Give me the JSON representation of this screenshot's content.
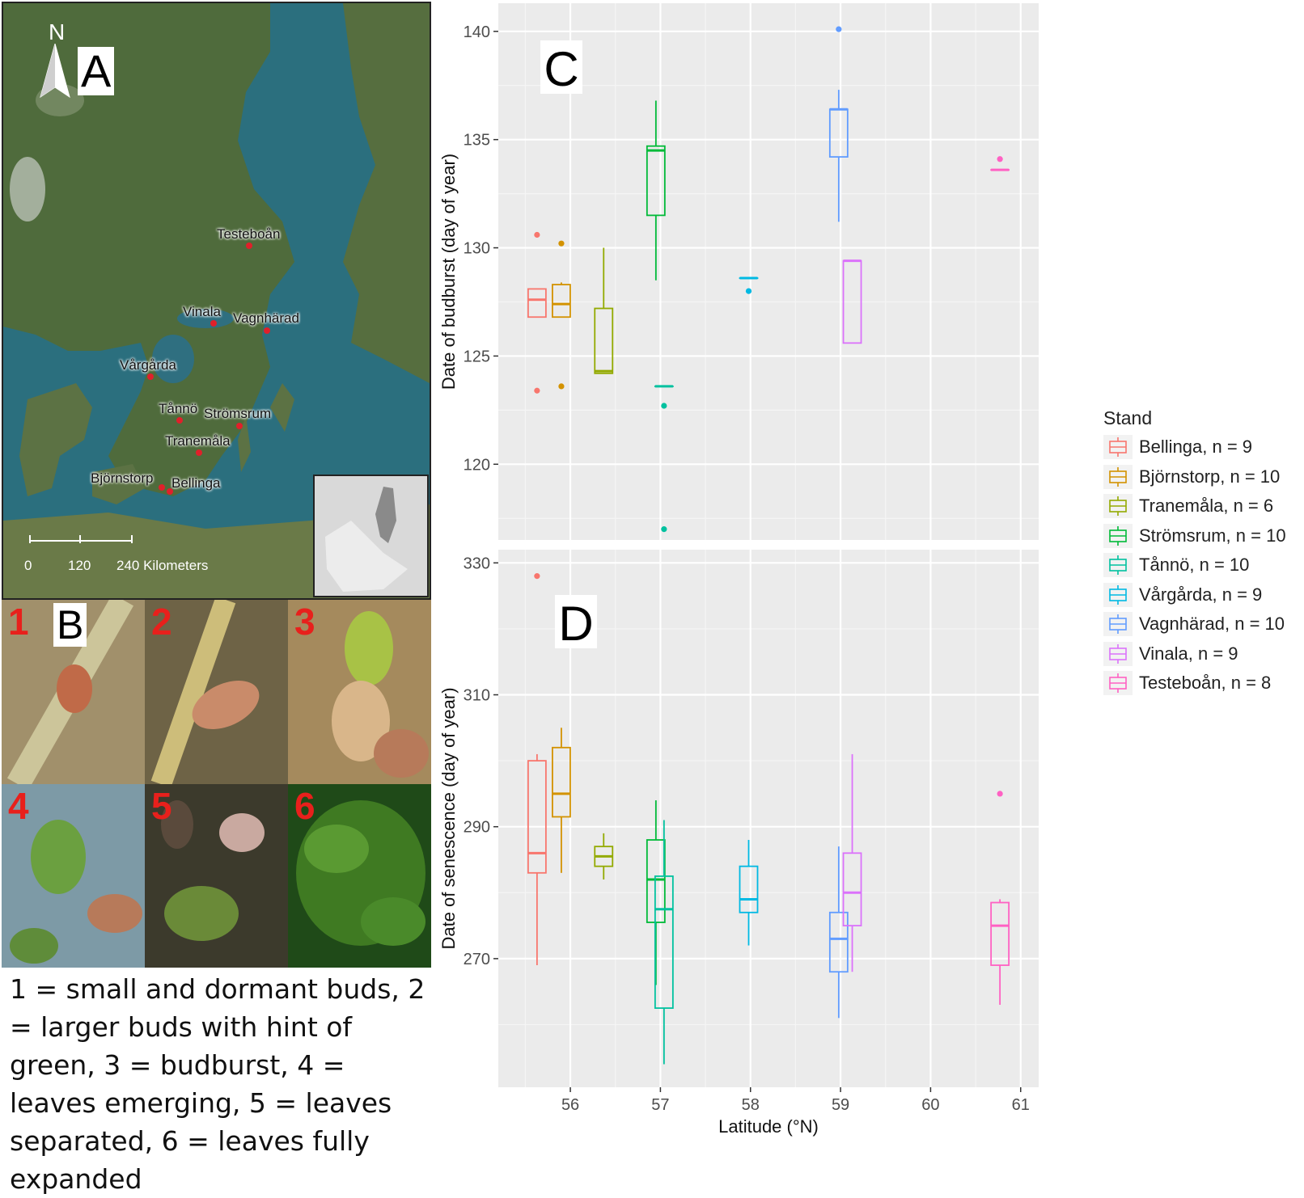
{
  "panel_a": {
    "letter": "A",
    "north_label": "N",
    "sites": [
      {
        "name": "Testeboån"
      },
      {
        "name": "Vinala"
      },
      {
        "name": "Vagnhärad"
      },
      {
        "name": "Vårgårda"
      },
      {
        "name": "Tånnö"
      },
      {
        "name": "Strömsrum"
      },
      {
        "name": "Tranemåla"
      },
      {
        "name": "Björnstorp"
      },
      {
        "name": "Bellinga"
      }
    ],
    "scale_labels": [
      "0",
      "120",
      "240 Kilometers"
    ],
    "colors": {
      "sea": "#2b6f7e",
      "land": "#4f6b3c",
      "site_dot": "#e0202a"
    }
  },
  "panel_b": {
    "letter": "B",
    "stage_numbers": [
      "1",
      "2",
      "3",
      "4",
      "5",
      "6"
    ],
    "caption": "1 = small and dormant buds, 2 = larger buds with hint of green, 3 = budburst, 4 = leaves emerging, 5 = leaves separated, 6 = leaves fully expanded"
  },
  "chart_data": [
    {
      "type": "box",
      "panel_label": "C",
      "ylabel": "Date of budburst (day of year)",
      "ylim": [
        116.5,
        141.3
      ],
      "yticks": [
        120,
        125,
        130,
        135,
        140
      ],
      "xlim": [
        55.2,
        61.2
      ],
      "grid": true,
      "series": [
        {
          "name": "Bellinga",
          "x": 55.63,
          "min": 126.8,
          "q1": 126.8,
          "median": 127.6,
          "q3": 128.1,
          "max": 128.1,
          "outliers": [
            130.6,
            123.4
          ]
        },
        {
          "name": "Björnstorp",
          "x": 55.9,
          "min": 126.8,
          "q1": 126.8,
          "median": 127.4,
          "q3": 128.3,
          "max": 128.4,
          "outliers": [
            130.2,
            123.6
          ]
        },
        {
          "name": "Tranemåla",
          "x": 56.37,
          "min": 124.2,
          "q1": 124.2,
          "median": 124.3,
          "q3": 127.2,
          "max": 130.0,
          "outliers": []
        },
        {
          "name": "Strömsrum",
          "x": 56.95,
          "min": 128.5,
          "q1": 131.5,
          "median": 134.5,
          "q3": 134.7,
          "max": 136.8,
          "outliers": []
        },
        {
          "name": "Tånnö",
          "x": 57.04,
          "min": 123.6,
          "q1": 123.6,
          "median": 123.6,
          "q3": 123.6,
          "max": 123.6,
          "outliers": [
            122.7,
            117.0
          ]
        },
        {
          "name": "Vårgårda",
          "x": 57.98,
          "min": 128.6,
          "q1": 128.6,
          "median": 128.6,
          "q3": 128.6,
          "max": 128.6,
          "outliers": [
            128.0
          ]
        },
        {
          "name": "Vagnhärad",
          "x": 58.98,
          "min": 131.2,
          "q1": 134.2,
          "median": 136.4,
          "q3": 136.4,
          "max": 137.3,
          "outliers": [
            140.1
          ]
        },
        {
          "name": "Vinala",
          "x": 59.13,
          "min": 125.6,
          "q1": 125.6,
          "median": 129.4,
          "q3": 129.4,
          "max": 129.4,
          "outliers": []
        },
        {
          "name": "Testeboån",
          "x": 60.77,
          "min": 133.6,
          "q1": 133.6,
          "median": 133.6,
          "q3": 133.6,
          "max": 133.6,
          "outliers": [
            134.1
          ]
        }
      ]
    },
    {
      "type": "box",
      "panel_label": "D",
      "ylabel": "Date of senescence (day of year)",
      "xlabel": "Latitude (°N)",
      "ylim": [
        250.5,
        332
      ],
      "yticks": [
        270,
        290,
        310,
        330
      ],
      "xticks": [
        56,
        57,
        58,
        59,
        60,
        61
      ],
      "xlim": [
        55.2,
        61.2
      ],
      "grid": true,
      "series": [
        {
          "name": "Bellinga",
          "x": 55.63,
          "min": 269,
          "q1": 283,
          "median": 286,
          "q3": 300,
          "max": 301,
          "outliers": [
            328
          ]
        },
        {
          "name": "Björnstorp",
          "x": 55.9,
          "min": 283,
          "q1": 291.5,
          "median": 295,
          "q3": 302,
          "max": 305,
          "outliers": []
        },
        {
          "name": "Tranemåla",
          "x": 56.37,
          "min": 282,
          "q1": 284,
          "median": 285.5,
          "q3": 287,
          "max": 289,
          "outliers": []
        },
        {
          "name": "Strömsrum",
          "x": 56.95,
          "min": 266,
          "q1": 275.5,
          "median": 282,
          "q3": 288,
          "max": 294,
          "outliers": []
        },
        {
          "name": "Tånnö",
          "x": 57.04,
          "min": 254,
          "q1": 262.5,
          "median": 277.5,
          "q3": 282.5,
          "max": 291,
          "outliers": []
        },
        {
          "name": "Vårgårda",
          "x": 57.98,
          "min": 272,
          "q1": 277,
          "median": 279,
          "q3": 284,
          "max": 288,
          "outliers": []
        },
        {
          "name": "Vagnhärad",
          "x": 58.98,
          "min": 261,
          "q1": 268,
          "median": 273,
          "q3": 277,
          "max": 287,
          "outliers": []
        },
        {
          "name": "Vinala",
          "x": 59.13,
          "min": 268,
          "q1": 275,
          "median": 280,
          "q3": 286,
          "max": 301,
          "outliers": []
        },
        {
          "name": "Testeboån",
          "x": 60.77,
          "min": 263,
          "q1": 269,
          "median": 275,
          "q3": 278.5,
          "max": 279,
          "outliers": [
            295
          ]
        }
      ]
    }
  ],
  "legend": {
    "title": "Stand",
    "entries": [
      {
        "label": "Bellinga, n = 9",
        "color": "#F8766D"
      },
      {
        "label": "Björnstorp, n = 10",
        "color": "#D39200"
      },
      {
        "label": "Tranemåla, n = 6",
        "color": "#93AA00"
      },
      {
        "label": "Strömsrum, n = 10",
        "color": "#00BA38"
      },
      {
        "label": "Tånnö, n = 10",
        "color": "#00C19F"
      },
      {
        "label": "Vårgårda, n = 9",
        "color": "#00B9E3"
      },
      {
        "label": "Vagnhärad, n = 10",
        "color": "#619CFF"
      },
      {
        "label": "Vinala, n = 9",
        "color": "#DB72FB"
      },
      {
        "label": "Testeboån, n = 8",
        "color": "#FF61C3"
      }
    ]
  },
  "style": {
    "panel_bg": "#ebebeb",
    "grid_major": "#ffffff",
    "grid_minor": "#f5f5f5",
    "axis_text": "#4d4d4d"
  }
}
